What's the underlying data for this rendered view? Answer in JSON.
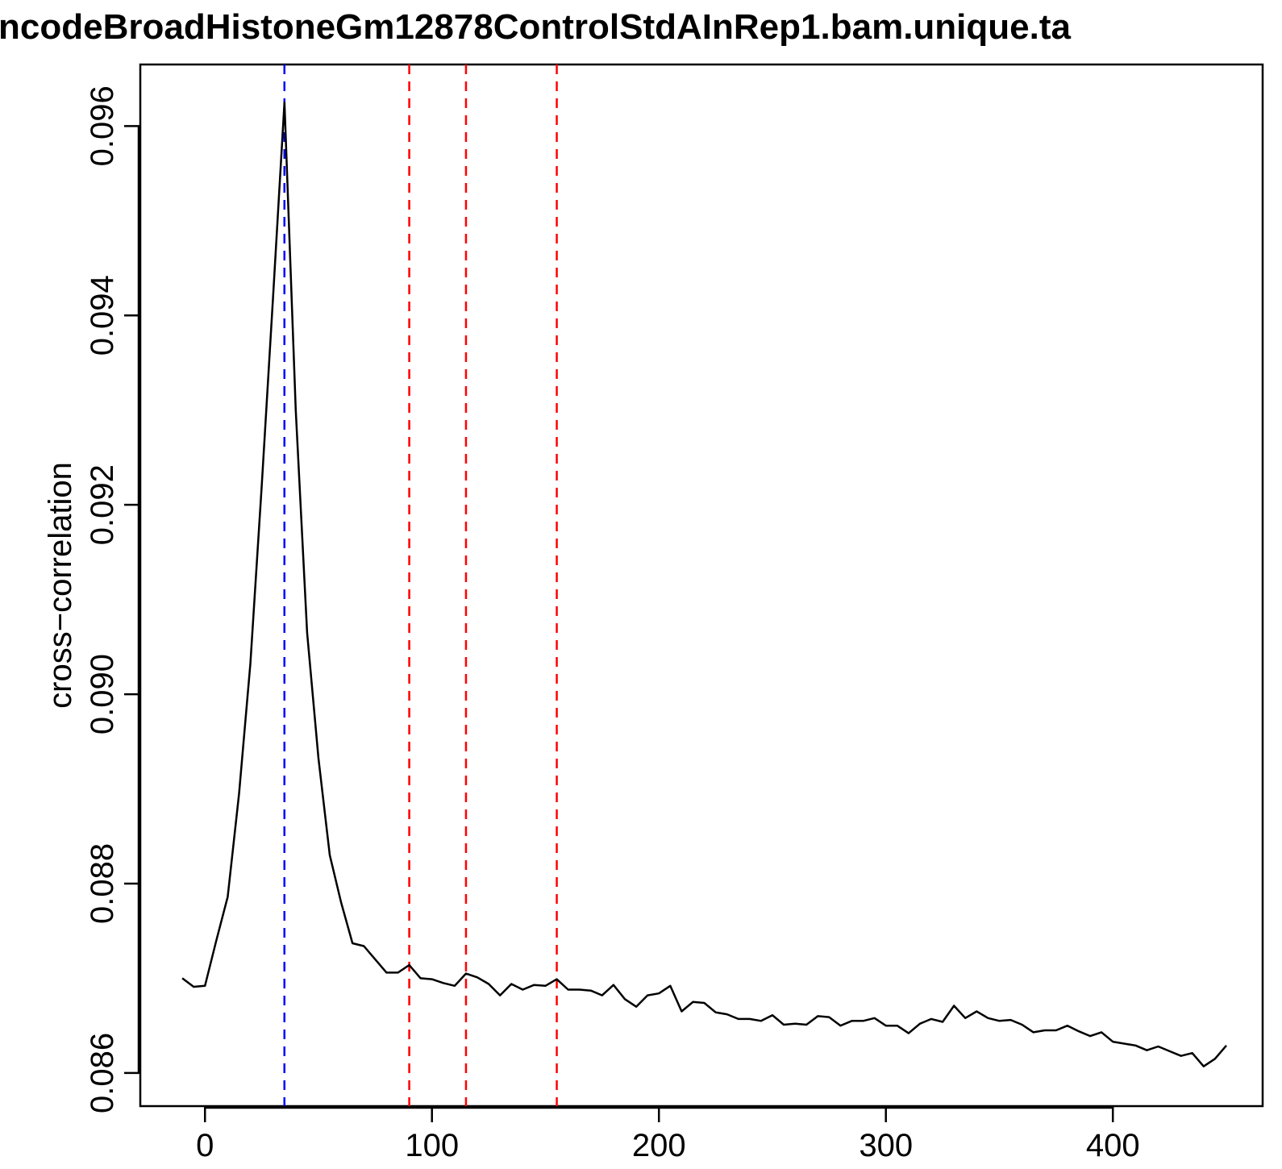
{
  "chart_data": {
    "type": "line",
    "title": "ncodeBroadHistoneGm12878ControlStdAInRep1.bam.unique.ta",
    "xlabel": "",
    "ylabel": "cross−correlation",
    "xlim": [
      -28.5,
      466
    ],
    "ylim": [
      0.08565,
      0.09665
    ],
    "x_ticks": [
      0,
      100,
      200,
      300,
      400
    ],
    "x_tick_labels": [
      "0",
      "100",
      "200",
      "300",
      "400"
    ],
    "y_ticks": [
      0.086,
      0.088,
      0.09,
      0.092,
      0.094,
      0.096
    ],
    "y_tick_labels": [
      "0.086",
      "0.088",
      "0.090",
      "0.092",
      "0.094",
      "0.096"
    ],
    "grid": false,
    "series": [
      {
        "color": "#000000",
        "x": [
          -10,
          -5,
          0,
          5,
          10,
          15,
          20,
          25,
          30,
          35,
          40,
          45,
          50,
          55,
          60,
          65,
          70,
          75,
          80,
          85,
          90,
          95,
          100,
          105,
          110,
          115,
          120,
          125,
          130,
          135,
          140,
          145,
          150,
          155,
          160,
          165,
          170,
          175,
          180,
          185,
          190,
          195,
          200,
          205,
          210,
          215,
          220,
          225,
          230,
          235,
          240,
          245,
          250,
          255,
          260,
          265,
          270,
          275,
          280,
          285,
          290,
          295,
          300,
          305,
          310,
          315,
          320,
          325,
          330,
          335,
          340,
          345,
          350,
          355,
          360,
          365,
          370,
          375,
          380,
          385,
          390,
          395,
          400,
          405,
          410,
          415,
          420,
          425,
          430,
          435,
          440,
          445,
          450
        ],
        "y": [
          0.087,
          0.08691,
          0.08692,
          0.0874,
          0.08786,
          0.08895,
          0.09032,
          0.0922,
          0.0942,
          0.09625,
          0.093,
          0.09065,
          0.08932,
          0.0883,
          0.0878,
          0.08737,
          0.08734,
          0.0872,
          0.08706,
          0.08706,
          0.08714,
          0.087,
          0.08699,
          0.08695,
          0.08692,
          0.08705,
          0.08701,
          0.08694,
          0.08682,
          0.08694,
          0.08688,
          0.08693,
          0.08692,
          0.08699,
          0.08688,
          0.08688,
          0.08687,
          0.08682,
          0.08693,
          0.08678,
          0.0867,
          0.08682,
          0.08684,
          0.08692,
          0.08665,
          0.08675,
          0.08674,
          0.08664,
          0.08662,
          0.08657,
          0.08657,
          0.08655,
          0.08661,
          0.08651,
          0.08652,
          0.08651,
          0.0866,
          0.08659,
          0.0865,
          0.08655,
          0.08655,
          0.08658,
          0.0865,
          0.0865,
          0.08642,
          0.08652,
          0.08657,
          0.08654,
          0.08671,
          0.08658,
          0.08665,
          0.08658,
          0.08655,
          0.08656,
          0.08651,
          0.08643,
          0.08645,
          0.08645,
          0.0865,
          0.08644,
          0.08639,
          0.08643,
          0.08633,
          0.08631,
          0.08629,
          0.08624,
          0.08628,
          0.08623,
          0.08618,
          0.08621,
          0.08607,
          0.08615,
          0.08629
        ]
      }
    ],
    "vlines": [
      {
        "x": 35,
        "color": "#0000ff",
        "style": "dashed"
      },
      {
        "x": 90,
        "color": "#ff0000",
        "style": "dashed"
      },
      {
        "x": 115,
        "color": "#ff0000",
        "style": "dashed"
      },
      {
        "x": 155,
        "color": "#ff0000",
        "style": "dashed"
      }
    ]
  }
}
